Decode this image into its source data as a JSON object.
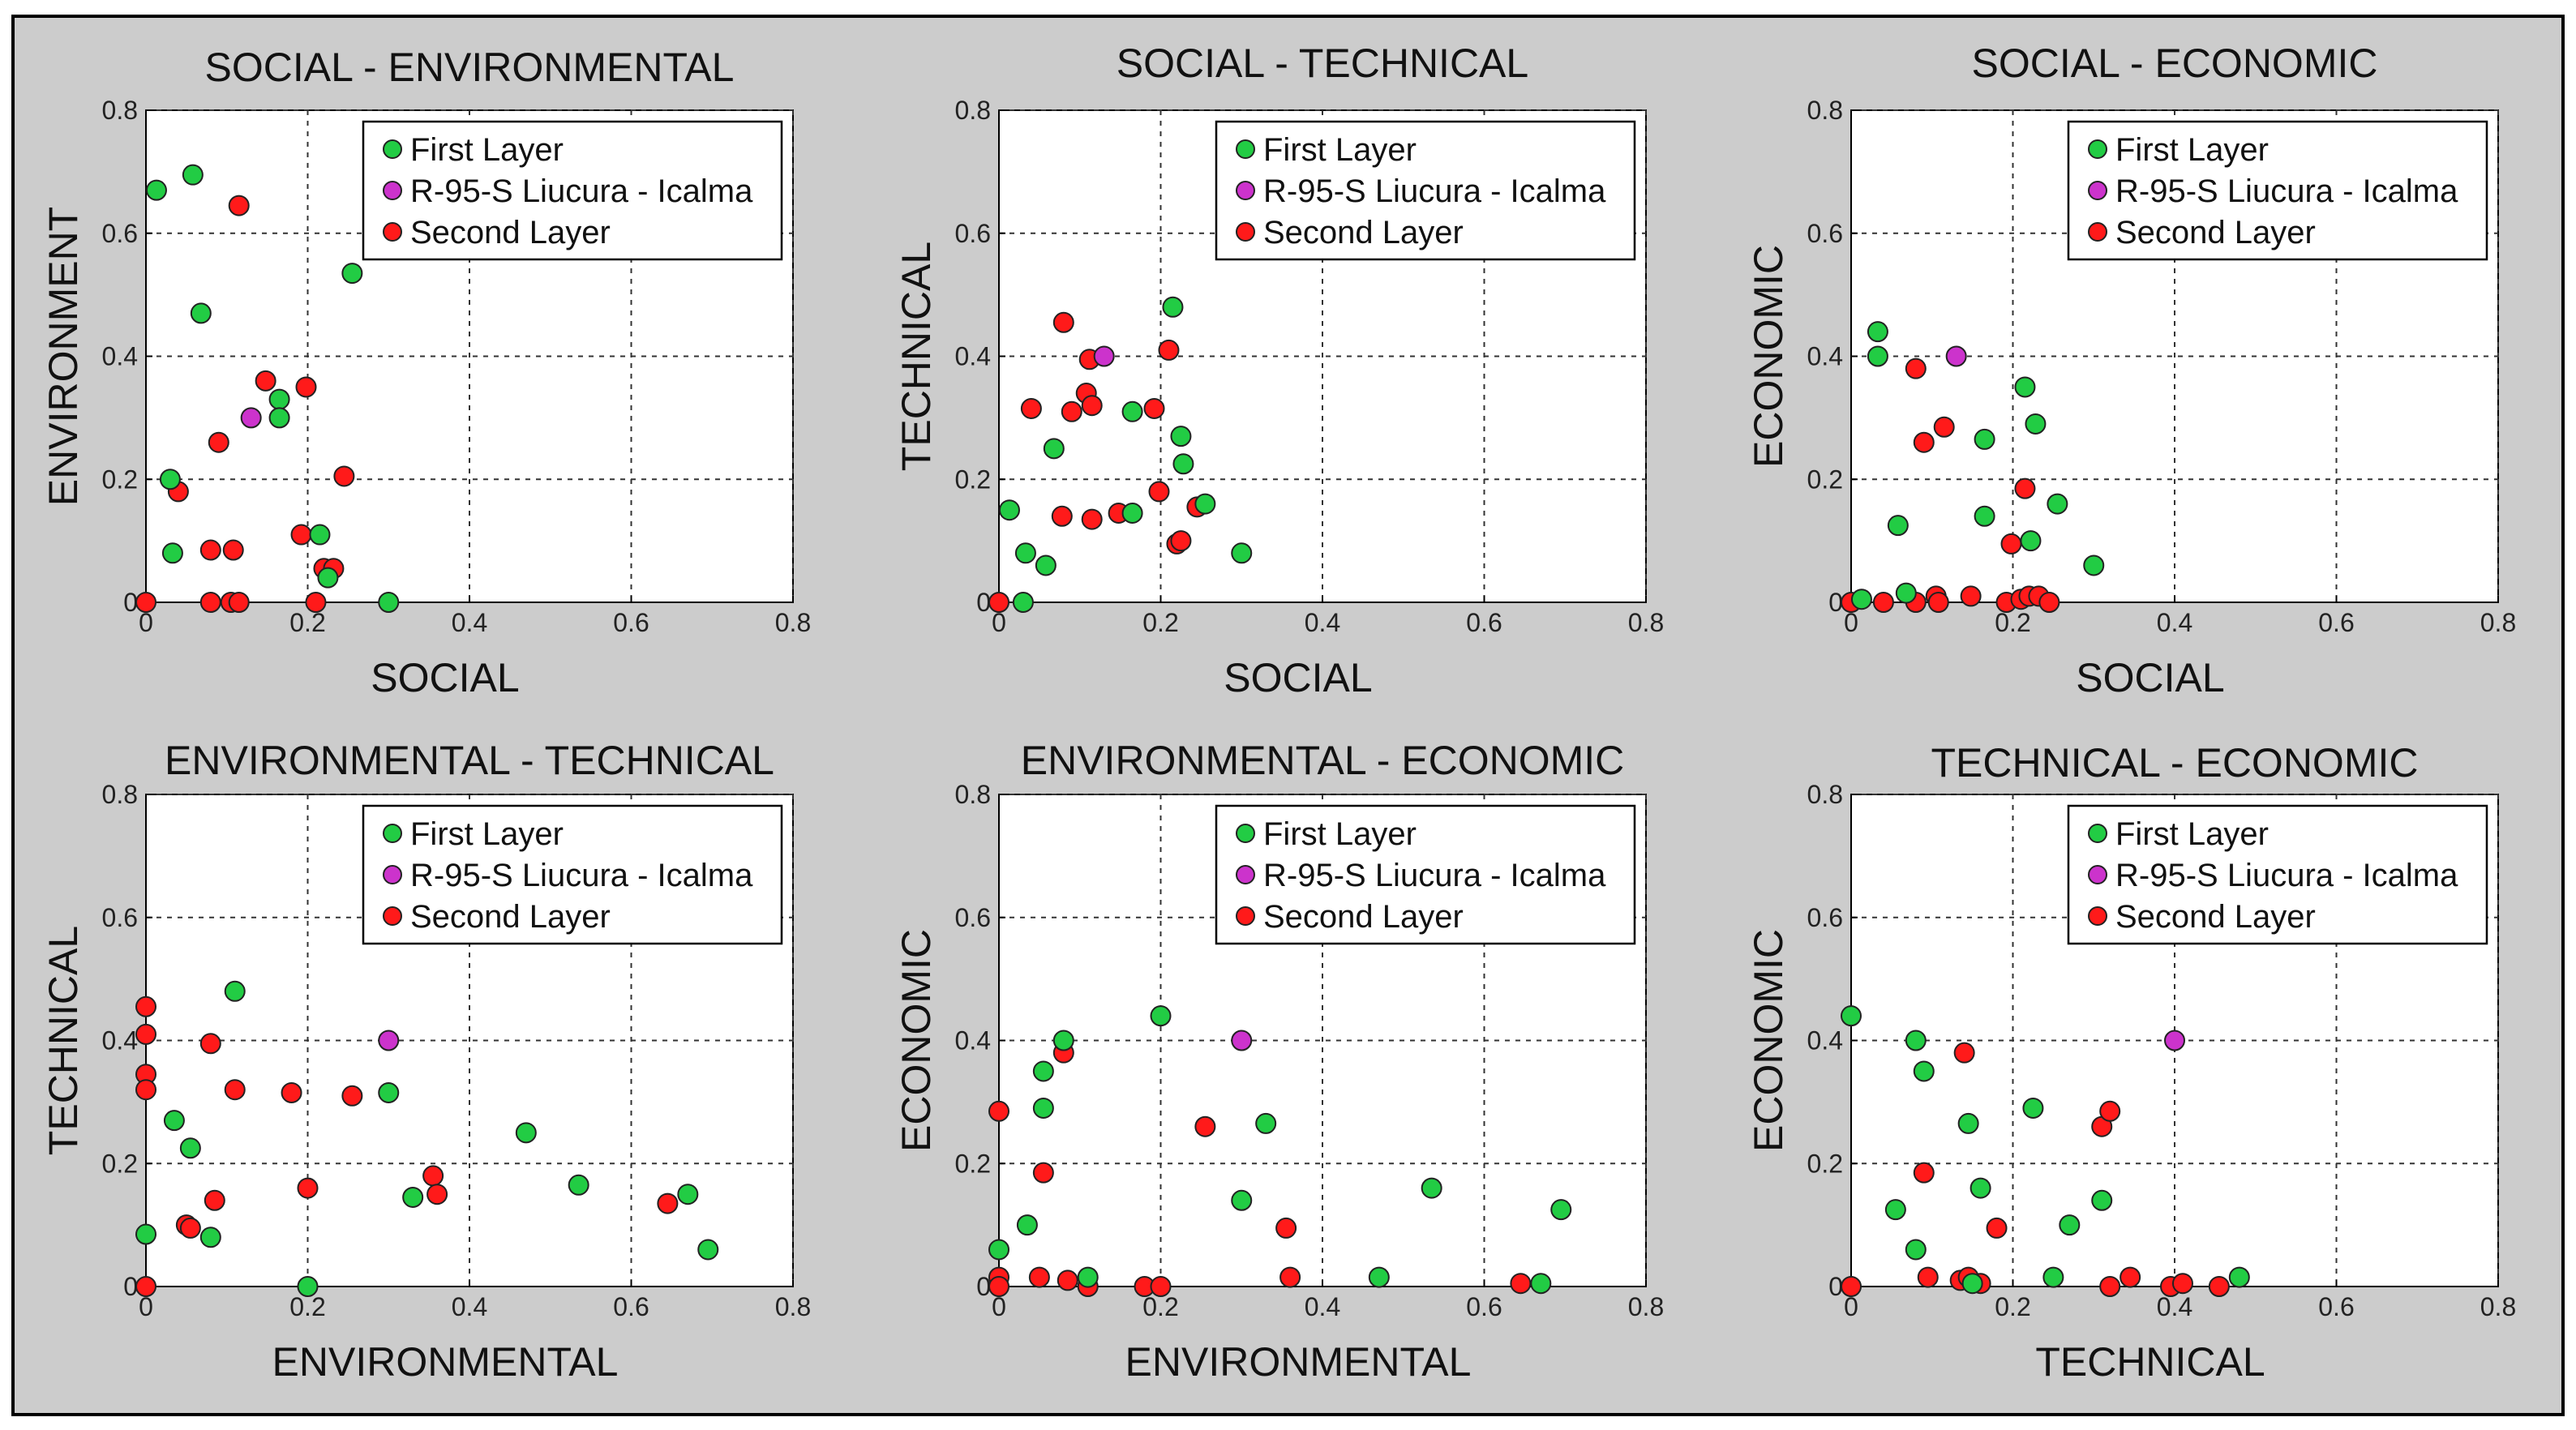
{
  "colors": {
    "first_layer": "#22cc44",
    "route": "#cc33cc",
    "second_layer": "#ff1a1a"
  },
  "legend_labels": [
    "First Layer",
    "R-95-S Liucura - Icalma",
    "Second Layer"
  ],
  "chart_data": [
    {
      "type": "scatter",
      "title": "SOCIAL - ENVIRONMENTAL",
      "xlabel": "SOCIAL",
      "ylabel": "ENVIRONMENT",
      "xlim": [
        0,
        0.8
      ],
      "ylim": [
        0,
        0.8
      ],
      "xticks": [
        "0",
        "0.2",
        "0.4",
        "0.6",
        "0.8"
      ],
      "yticks": [
        "0",
        "0.2",
        "0.4",
        "0.6",
        "0.8"
      ],
      "grid": true,
      "legend_position": "top-right",
      "series": [
        {
          "name": "First Layer",
          "color_key": "first_layer",
          "points": [
            [
              0.013,
              0.67
            ],
            [
              0.058,
              0.695
            ],
            [
              0.068,
              0.47
            ],
            [
              0.255,
              0.535
            ],
            [
              0.03,
              0.2
            ],
            [
              0.033,
              0.08
            ],
            [
              0.165,
              0.33
            ],
            [
              0.165,
              0.3
            ],
            [
              0.215,
              0.11
            ],
            [
              0.225,
              0.04
            ],
            [
              0.3,
              0.0
            ]
          ]
        },
        {
          "name": "R-95-S Liucura - Icalma",
          "color_key": "route",
          "points": [
            [
              0.13,
              0.3
            ]
          ]
        },
        {
          "name": "Second Layer",
          "color_key": "second_layer",
          "points": [
            [
              0.0,
              0.0
            ],
            [
              0.04,
              0.18
            ],
            [
              0.09,
              0.26
            ],
            [
              0.115,
              0.645
            ],
            [
              0.148,
              0.36
            ],
            [
              0.198,
              0.35
            ],
            [
              0.245,
              0.205
            ],
            [
              0.192,
              0.11
            ],
            [
              0.08,
              0.085
            ],
            [
              0.108,
              0.085
            ],
            [
              0.22,
              0.055
            ],
            [
              0.232,
              0.055
            ],
            [
              0.08,
              0.0
            ],
            [
              0.105,
              0.0
            ],
            [
              0.115,
              0.0
            ],
            [
              0.21,
              0.0
            ]
          ]
        }
      ]
    },
    {
      "type": "scatter",
      "title": "SOCIAL - TECHNICAL",
      "xlabel": "SOCIAL",
      "ylabel": "TECHNICAL",
      "xlim": [
        0,
        0.8
      ],
      "ylim": [
        0,
        0.8
      ],
      "xticks": [
        "0",
        "0.2",
        "0.4",
        "0.6",
        "0.8"
      ],
      "yticks": [
        "0",
        "0.2",
        "0.4",
        "0.6",
        "0.8"
      ],
      "grid": true,
      "legend_position": "top-right",
      "series": [
        {
          "name": "First Layer",
          "color_key": "first_layer",
          "points": [
            [
              0.013,
              0.15
            ],
            [
              0.033,
              0.08
            ],
            [
              0.03,
              0.0
            ],
            [
              0.058,
              0.06
            ],
            [
              0.068,
              0.25
            ],
            [
              0.165,
              0.31
            ],
            [
              0.165,
              0.145
            ],
            [
              0.215,
              0.48
            ],
            [
              0.225,
              0.27
            ],
            [
              0.228,
              0.225
            ],
            [
              0.255,
              0.16
            ],
            [
              0.3,
              0.08
            ]
          ]
        },
        {
          "name": "R-95-S Liucura - Icalma",
          "color_key": "route",
          "points": [
            [
              0.13,
              0.4
            ]
          ]
        },
        {
          "name": "Second Layer",
          "color_key": "second_layer",
          "points": [
            [
              0.0,
              0.0
            ],
            [
              0.04,
              0.315
            ],
            [
              0.078,
              0.14
            ],
            [
              0.08,
              0.455
            ],
            [
              0.09,
              0.31
            ],
            [
              0.108,
              0.34
            ],
            [
              0.112,
              0.395
            ],
            [
              0.115,
              0.32
            ],
            [
              0.115,
              0.135
            ],
            [
              0.148,
              0.145
            ],
            [
              0.192,
              0.315
            ],
            [
              0.198,
              0.18
            ],
            [
              0.21,
              0.41
            ],
            [
              0.22,
              0.095
            ],
            [
              0.225,
              0.1
            ],
            [
              0.245,
              0.155
            ]
          ]
        }
      ]
    },
    {
      "type": "scatter",
      "title": "SOCIAL - ECONOMIC",
      "xlabel": "SOCIAL",
      "ylabel": "ECONOMIC",
      "xlim": [
        0,
        0.8
      ],
      "ylim": [
        0,
        0.8
      ],
      "xticks": [
        "0",
        "0.2",
        "0.4",
        "0.6",
        "0.8"
      ],
      "yticks": [
        "0",
        "0.2",
        "0.4",
        "0.6",
        "0.8"
      ],
      "grid": true,
      "legend_position": "top-right",
      "series": [
        {
          "name": "First Layer",
          "color_key": "first_layer",
          "points": [
            [
              0.013,
              0.005
            ],
            [
              0.033,
              0.44
            ],
            [
              0.033,
              0.4
            ],
            [
              0.058,
              0.125
            ],
            [
              0.068,
              0.015
            ],
            [
              0.165,
              0.265
            ],
            [
              0.165,
              0.14
            ],
            [
              0.215,
              0.35
            ],
            [
              0.222,
              0.1
            ],
            [
              0.228,
              0.29
            ],
            [
              0.255,
              0.16
            ],
            [
              0.3,
              0.06
            ]
          ]
        },
        {
          "name": "R-95-S Liucura - Icalma",
          "color_key": "route",
          "points": [
            [
              0.13,
              0.4
            ]
          ]
        },
        {
          "name": "Second Layer",
          "color_key": "second_layer",
          "points": [
            [
              0.0,
              0.0
            ],
            [
              0.04,
              0.0
            ],
            [
              0.08,
              0.0
            ],
            [
              0.08,
              0.38
            ],
            [
              0.09,
              0.26
            ],
            [
              0.105,
              0.01
            ],
            [
              0.108,
              0.0
            ],
            [
              0.115,
              0.285
            ],
            [
              0.148,
              0.01
            ],
            [
              0.192,
              0.0
            ],
            [
              0.198,
              0.095
            ],
            [
              0.21,
              0.005
            ],
            [
              0.215,
              0.185
            ],
            [
              0.22,
              0.01
            ],
            [
              0.232,
              0.01
            ],
            [
              0.245,
              0.0
            ]
          ]
        }
      ]
    },
    {
      "type": "scatter",
      "title": "ENVIRONMENTAL - TECHNICAL",
      "xlabel": "ENVIRONMENTAL",
      "ylabel": "TECHNICAL",
      "xlim": [
        0,
        0.8
      ],
      "ylim": [
        0,
        0.8
      ],
      "xticks": [
        "0",
        "0.2",
        "0.4",
        "0.6",
        "0.8"
      ],
      "yticks": [
        "0",
        "0.2",
        "0.4",
        "0.6",
        "0.8"
      ],
      "grid": true,
      "legend_position": "top-right",
      "series": [
        {
          "name": "First Layer",
          "color_key": "first_layer",
          "points": [
            [
              0.0,
              0.085
            ],
            [
              0.035,
              0.27
            ],
            [
              0.055,
              0.225
            ],
            [
              0.08,
              0.08
            ],
            [
              0.11,
              0.48
            ],
            [
              0.2,
              0.0
            ],
            [
              0.3,
              0.315
            ],
            [
              0.33,
              0.145
            ],
            [
              0.47,
              0.25
            ],
            [
              0.535,
              0.165
            ],
            [
              0.67,
              0.15
            ],
            [
              0.695,
              0.06
            ]
          ]
        },
        {
          "name": "R-95-S Liucura - Icalma",
          "color_key": "route",
          "points": [
            [
              0.3,
              0.4
            ]
          ]
        },
        {
          "name": "Second Layer",
          "color_key": "second_layer",
          "points": [
            [
              0.0,
              0.0
            ],
            [
              0.0,
              0.455
            ],
            [
              0.0,
              0.41
            ],
            [
              0.0,
              0.345
            ],
            [
              0.0,
              0.32
            ],
            [
              0.05,
              0.1
            ],
            [
              0.055,
              0.095
            ],
            [
              0.08,
              0.395
            ],
            [
              0.085,
              0.14
            ],
            [
              0.11,
              0.32
            ],
            [
              0.18,
              0.315
            ],
            [
              0.2,
              0.16
            ],
            [
              0.255,
              0.31
            ],
            [
              0.355,
              0.18
            ],
            [
              0.36,
              0.15
            ],
            [
              0.645,
              0.135
            ]
          ]
        }
      ]
    },
    {
      "type": "scatter",
      "title": "ENVIRONMENTAL - ECONOMIC",
      "xlabel": "ENVIRONMENTAL",
      "ylabel": "ECONOMIC",
      "xlim": [
        0,
        0.8
      ],
      "ylim": [
        0,
        0.8
      ],
      "xticks": [
        "0",
        "0.2",
        "0.4",
        "0.6",
        "0.8"
      ],
      "yticks": [
        "0",
        "0.2",
        "0.4",
        "0.6",
        "0.8"
      ],
      "grid": true,
      "legend_position": "top-right",
      "series": [
        {
          "name": "First Layer",
          "color_key": "first_layer",
          "points": [
            [
              0.0,
              0.06
            ],
            [
              0.035,
              0.1
            ],
            [
              0.055,
              0.35
            ],
            [
              0.055,
              0.29
            ],
            [
              0.08,
              0.4
            ],
            [
              0.11,
              0.015
            ],
            [
              0.2,
              0.44
            ],
            [
              0.3,
              0.14
            ],
            [
              0.33,
              0.265
            ],
            [
              0.47,
              0.015
            ],
            [
              0.535,
              0.16
            ],
            [
              0.67,
              0.005
            ],
            [
              0.695,
              0.125
            ]
          ]
        },
        {
          "name": "R-95-S Liucura - Icalma",
          "color_key": "route",
          "points": [
            [
              0.3,
              0.4
            ]
          ]
        },
        {
          "name": "Second Layer",
          "color_key": "second_layer",
          "points": [
            [
              0.0,
              0.285
            ],
            [
              0.0,
              0.015
            ],
            [
              0.0,
              0.0
            ],
            [
              0.05,
              0.015
            ],
            [
              0.055,
              0.185
            ],
            [
              0.08,
              0.38
            ],
            [
              0.085,
              0.01
            ],
            [
              0.11,
              0.0
            ],
            [
              0.18,
              0.0
            ],
            [
              0.2,
              0.0
            ],
            [
              0.255,
              0.26
            ],
            [
              0.355,
              0.095
            ],
            [
              0.36,
              0.015
            ],
            [
              0.645,
              0.005
            ]
          ]
        }
      ]
    },
    {
      "type": "scatter",
      "title": "TECHNICAL - ECONOMIC",
      "xlabel": "TECHNICAL",
      "ylabel": "ECONOMIC",
      "xlim": [
        0,
        0.8
      ],
      "ylim": [
        0,
        0.8
      ],
      "xticks": [
        "0",
        "0.2",
        "0.4",
        "0.6",
        "0.8"
      ],
      "yticks": [
        "0",
        "0.2",
        "0.4",
        "0.6",
        "0.8"
      ],
      "grid": true,
      "legend_position": "top-right",
      "series": [
        {
          "name": "First Layer",
          "color_key": "first_layer",
          "points": [
            [
              0.0,
              0.44
            ],
            [
              0.055,
              0.125
            ],
            [
              0.08,
              0.4
            ],
            [
              0.08,
              0.06
            ],
            [
              0.09,
              0.35
            ],
            [
              0.145,
              0.265
            ],
            [
              0.15,
              0.005
            ],
            [
              0.16,
              0.16
            ],
            [
              0.225,
              0.29
            ],
            [
              0.25,
              0.015
            ],
            [
              0.27,
              0.1
            ],
            [
              0.31,
              0.14
            ],
            [
              0.48,
              0.015
            ]
          ]
        },
        {
          "name": "R-95-S Liucura - Icalma",
          "color_key": "route",
          "points": [
            [
              0.4,
              0.4
            ]
          ]
        },
        {
          "name": "Second Layer",
          "color_key": "second_layer",
          "points": [
            [
              0.0,
              0.0
            ],
            [
              0.09,
              0.185
            ],
            [
              0.095,
              0.015
            ],
            [
              0.135,
              0.01
            ],
            [
              0.14,
              0.38
            ],
            [
              0.145,
              0.015
            ],
            [
              0.16,
              0.005
            ],
            [
              0.18,
              0.095
            ],
            [
              0.31,
              0.26
            ],
            [
              0.32,
              0.285
            ],
            [
              0.32,
              0.0
            ],
            [
              0.345,
              0.015
            ],
            [
              0.395,
              0.0
            ],
            [
              0.41,
              0.005
            ],
            [
              0.455,
              0.0
            ]
          ]
        }
      ]
    }
  ]
}
